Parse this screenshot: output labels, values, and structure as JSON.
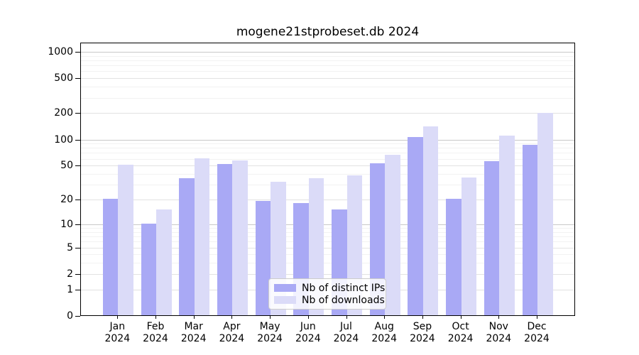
{
  "chart_data": {
    "type": "bar",
    "title": "mogene21stprobeset.db 2024",
    "xlabel": "",
    "ylabel": "",
    "categories": [
      "Jan",
      "Feb",
      "Mar",
      "Apr",
      "May",
      "Jun",
      "Jul",
      "Aug",
      "Sep",
      "Oct",
      "Nov",
      "Dec"
    ],
    "year_label": "2024",
    "series": [
      {
        "name": "Nb of distinct IPs",
        "color": "#a9a9f5",
        "values": [
          20,
          10,
          35,
          51,
          19,
          18,
          15,
          52,
          105,
          20,
          55,
          85
        ]
      },
      {
        "name": "Nb of downloads",
        "color": "#dbdbf8",
        "values": [
          50,
          15,
          60,
          56,
          32,
          35,
          38,
          66,
          138,
          36,
          108,
          199
        ]
      }
    ],
    "y_ticks": [
      1000,
      500,
      200,
      100,
      50,
      20,
      10,
      5,
      2,
      1,
      0
    ],
    "y_minor_ticks": [
      3,
      4,
      6,
      7,
      8,
      9,
      30,
      40,
      60,
      70,
      80,
      90,
      300,
      400,
      600,
      700,
      800,
      900
    ],
    "scale": "log1p",
    "ylim": [
      0,
      1250
    ],
    "grid": true,
    "legend_position": "lower center",
    "colors": {
      "axis": "#000000",
      "grid_major_dark": "#c8c8c8",
      "grid_major": "#e2e2e2",
      "grid_minor": "#f2f2f2"
    }
  }
}
